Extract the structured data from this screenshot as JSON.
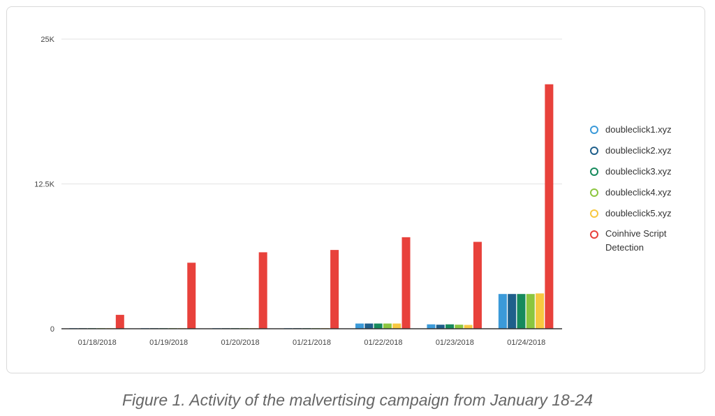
{
  "chart_data": {
    "type": "bar",
    "title": "",
    "xlabel": "",
    "ylabel": "",
    "ylim": [
      0,
      25000
    ],
    "yticks": [
      {
        "value": 0,
        "label": "0"
      },
      {
        "value": 12500,
        "label": "12.5K"
      },
      {
        "value": 25000,
        "label": "25K"
      }
    ],
    "grid": true,
    "legend_position": "right",
    "categories": [
      "01/18/2018",
      "01/19/2018",
      "01/20/2018",
      "01/21/2018",
      "01/22/2018",
      "01/23/2018",
      "01/24/2018"
    ],
    "series": [
      {
        "name": "doubleclick1.xyz",
        "color": "#3b9ad9",
        "values": [
          50,
          50,
          50,
          50,
          450,
          380,
          3000
        ]
      },
      {
        "name": "doubleclick2.xyz",
        "color": "#1f5f8b",
        "values": [
          50,
          50,
          50,
          50,
          450,
          350,
          3000
        ]
      },
      {
        "name": "doubleclick3.xyz",
        "color": "#168a5c",
        "values": [
          50,
          50,
          50,
          50,
          450,
          380,
          3000
        ]
      },
      {
        "name": "doubleclick4.xyz",
        "color": "#8cc63f",
        "values": [
          50,
          50,
          50,
          50,
          450,
          350,
          3000
        ]
      },
      {
        "name": "doubleclick5.xyz",
        "color": "#f8c840",
        "values": [
          50,
          50,
          50,
          50,
          450,
          330,
          3050
        ]
      },
      {
        "name": "Coinhive Script Detection",
        "color": "#e8413b",
        "values": [
          1200,
          5700,
          6600,
          6800,
          7900,
          7500,
          21100
        ]
      }
    ]
  },
  "caption": "Figure 1. Activity of the malvertising campaign from January 18-24"
}
